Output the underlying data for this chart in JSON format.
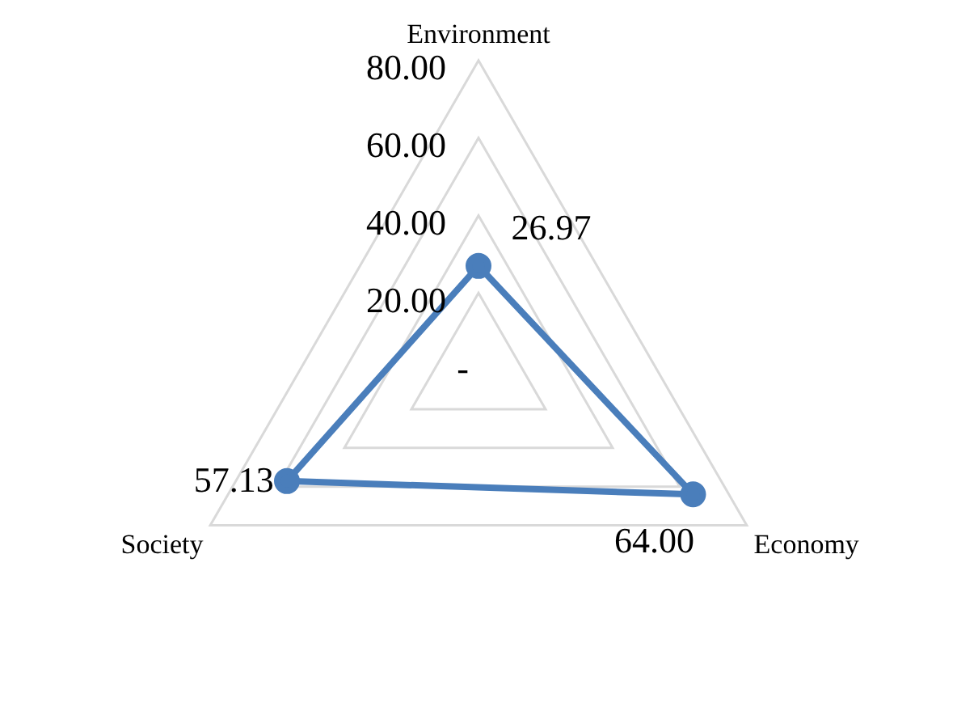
{
  "chart_data": {
    "type": "radar",
    "categories": [
      "Environment",
      "Economy",
      "Society"
    ],
    "series": [
      {
        "color": "#4a7ebb",
        "values": [
          26.97,
          64.0,
          57.13
        ],
        "value_labels": [
          "26.97",
          "64.00",
          "57.13"
        ]
      }
    ],
    "ylim": [
      0,
      80
    ],
    "yticks": [
      {
        "value": 0,
        "label": "-"
      },
      {
        "value": 20,
        "label": "20.00"
      },
      {
        "value": 40,
        "label": "40.00"
      },
      {
        "value": 60,
        "label": "60.00"
      },
      {
        "value": 80,
        "label": "80.00"
      }
    ],
    "grid": true,
    "legend": false,
    "marker": "circle",
    "line_style": "solid"
  }
}
